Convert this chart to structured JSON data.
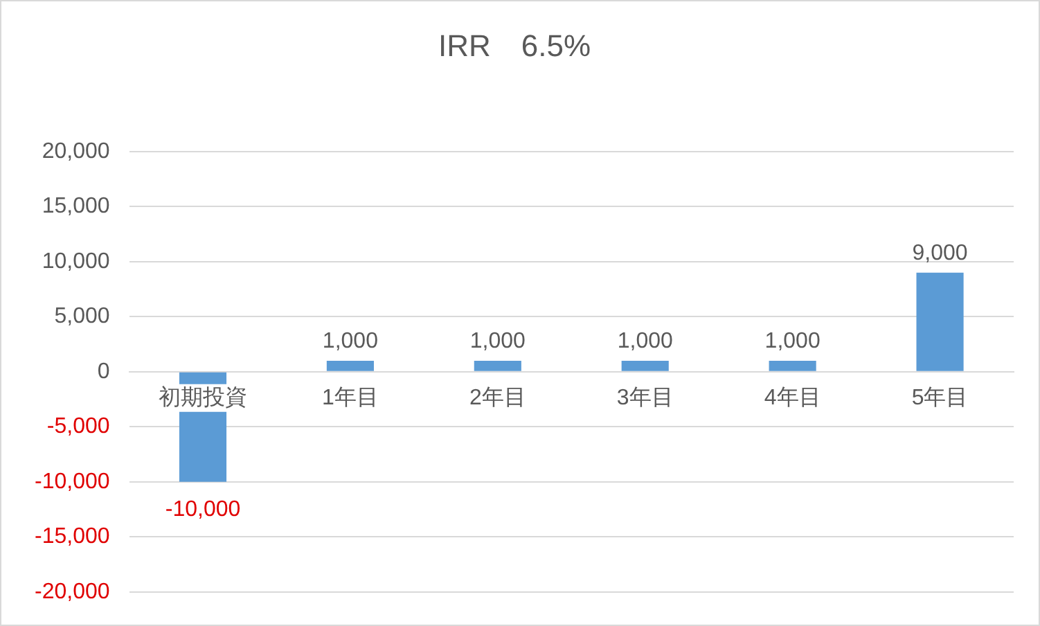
{
  "chart_data": {
    "type": "bar",
    "title": "IRR　6.5%",
    "categories": [
      "初期投資",
      "1年目",
      "2年目",
      "3年目",
      "4年目",
      "5年目"
    ],
    "values": [
      -10000,
      1000,
      1000,
      1000,
      1000,
      9000
    ],
    "color": "#5b9bd5",
    "value_labels": [
      "-10,000",
      "1,000",
      "1,000",
      "1,000",
      "1,000",
      "9,000"
    ],
    "ylim": [
      -20000,
      20000
    ],
    "yticks": [
      {
        "value": -20000,
        "label": "-20,000"
      },
      {
        "value": -15000,
        "label": "-15,000"
      },
      {
        "value": -10000,
        "label": "-10,000"
      },
      {
        "value": -5000,
        "label": "-5,000"
      },
      {
        "value": 0,
        "label": "0"
      },
      {
        "value": 5000,
        "label": "5,000"
      },
      {
        "value": 10000,
        "label": "10,000"
      },
      {
        "value": 15000,
        "label": "15,000"
      },
      {
        "value": 20000,
        "label": "20,000"
      }
    ],
    "grid": "y",
    "legend": false
  }
}
